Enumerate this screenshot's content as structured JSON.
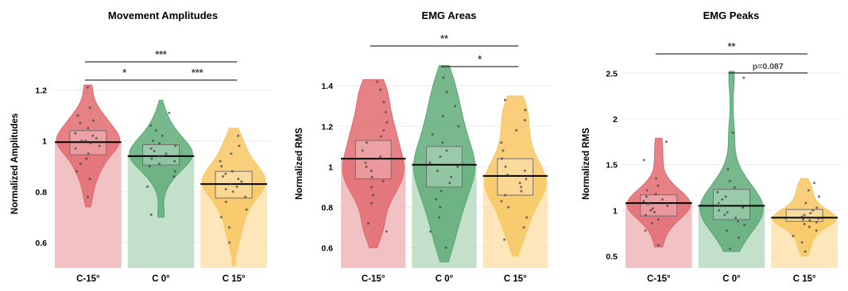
{
  "chart_data": [
    {
      "type": "violin",
      "title": "Movement Amplitudes",
      "xlabel": "",
      "ylabel": "Normalized Amplitudes",
      "ylim": [
        0.5,
        1.32
      ],
      "yticks": [
        0.6,
        0.8,
        1,
        1.2
      ],
      "ytick_labels": [
        "0.6",
        "0.8",
        "1",
        "1.2"
      ],
      "categories": [
        "C-15°",
        "C 0°",
        "C 15°"
      ],
      "means": [
        0.995,
        0.94,
        0.83
      ],
      "box_ranges": [
        [
          0.945,
          1.04
        ],
        [
          0.905,
          0.985
        ],
        [
          0.775,
          0.88
        ]
      ],
      "ranges": [
        [
          0.74,
          1.22
        ],
        [
          0.7,
          1.16
        ],
        [
          0.51,
          1.05
        ]
      ],
      "points": [
        [
          0.78,
          0.85,
          0.88,
          0.91,
          0.93,
          0.95,
          0.97,
          0.98,
          0.99,
          1.0,
          1.0,
          1.01,
          1.02,
          1.03,
          1.05,
          1.07,
          1.08,
          1.1,
          1.13,
          1.21
        ],
        [
          0.71,
          0.82,
          0.86,
          0.88,
          0.9,
          0.91,
          0.92,
          0.93,
          0.94,
          0.94,
          0.95,
          0.96,
          0.97,
          0.98,
          0.99,
          1.0,
          1.02,
          1.04,
          1.06,
          1.11
        ],
        [
          0.6,
          0.66,
          0.7,
          0.73,
          0.76,
          0.78,
          0.8,
          0.81,
          0.82,
          0.83,
          0.84,
          0.85,
          0.86,
          0.87,
          0.88,
          0.9,
          0.92,
          0.95,
          0.98,
          1.02
        ]
      ],
      "significance": [
        {
          "from": 0,
          "to": 1,
          "label": "*"
        },
        {
          "from": 0,
          "to": 2,
          "label": "***"
        },
        {
          "from": 1,
          "to": 2,
          "label": "***"
        }
      ]
    },
    {
      "type": "violin",
      "title": "EMG Areas",
      "xlabel": "",
      "ylabel": "Normalized RMS",
      "ylim": [
        0.5,
        1.53
      ],
      "yticks": [
        0.6,
        0.8,
        1,
        1.2,
        1.4
      ],
      "ytick_labels": [
        "0.6",
        "0.8",
        "1",
        "1.2",
        "1.4"
      ],
      "categories": [
        "C-15°",
        "C 0°",
        "C 15°"
      ],
      "means": [
        1.04,
        1.01,
        0.955
      ],
      "box_ranges": [
        [
          0.94,
          1.13
        ],
        [
          0.9,
          1.1
        ],
        [
          0.86,
          1.04
        ]
      ],
      "ranges": [
        [
          0.6,
          1.43
        ],
        [
          0.53,
          1.5
        ],
        [
          0.56,
          1.35
        ]
      ],
      "points": [
        [
          0.68,
          0.72,
          0.82,
          0.86,
          0.9,
          0.93,
          0.95,
          0.98,
          1.0,
          1.02,
          1.05,
          1.08,
          1.12,
          1.15,
          1.18,
          1.22,
          1.27,
          1.32,
          1.38,
          1.42
        ],
        [
          0.6,
          0.68,
          0.75,
          0.8,
          0.84,
          0.88,
          0.92,
          0.95,
          0.98,
          1.0,
          1.02,
          1.05,
          1.08,
          1.12,
          1.16,
          1.2,
          1.25,
          1.3,
          1.37,
          1.44
        ],
        [
          0.64,
          0.7,
          0.75,
          0.8,
          0.83,
          0.86,
          0.88,
          0.9,
          0.92,
          0.94,
          0.96,
          0.98,
          1.0,
          1.04,
          1.08,
          1.12,
          1.18,
          1.23,
          1.28,
          1.33
        ]
      ],
      "significance": [
        {
          "from": 0,
          "to": 2,
          "label": "**"
        },
        {
          "from": 1,
          "to": 2,
          "label": "*"
        }
      ]
    },
    {
      "type": "violin",
      "title": "EMG Peaks",
      "xlabel": "",
      "ylabel": "Normalized RMS",
      "ylim": [
        0.37,
        2.65
      ],
      "yticks": [
        0.5,
        1,
        1.5,
        2,
        2.5
      ],
      "ytick_labels": [
        "0.5",
        "1",
        "1.5",
        "2",
        "2.5"
      ],
      "categories": [
        "C-15°",
        "C 0°",
        "C 15°"
      ],
      "means": [
        1.08,
        1.05,
        0.92
      ],
      "box_ranges": [
        [
          0.94,
          1.17
        ],
        [
          0.9,
          1.23
        ],
        [
          0.88,
          1.01
        ]
      ],
      "ranges": [
        [
          0.6,
          1.79
        ],
        [
          0.55,
          2.52
        ],
        [
          0.5,
          1.35
        ]
      ],
      "points": [
        [
          0.62,
          0.78,
          0.86,
          0.9,
          0.95,
          0.98,
          1.0,
          1.02,
          1.05,
          1.07,
          1.08,
          1.1,
          1.12,
          1.15,
          1.18,
          1.22,
          1.27,
          1.35,
          1.55,
          1.75
        ],
        [
          0.58,
          0.7,
          0.78,
          0.84,
          0.88,
          0.92,
          0.95,
          0.98,
          1.0,
          1.03,
          1.05,
          1.08,
          1.12,
          1.15,
          1.2,
          1.25,
          1.32,
          1.45,
          1.85,
          2.45
        ],
        [
          0.55,
          0.65,
          0.72,
          0.78,
          0.82,
          0.85,
          0.87,
          0.89,
          0.9,
          0.91,
          0.92,
          0.93,
          0.95,
          0.97,
          1.0,
          1.03,
          1.08,
          1.15,
          1.22,
          1.3
        ]
      ],
      "significance": [
        {
          "from": 0,
          "to": 2,
          "label": "**"
        },
        {
          "from": 1,
          "to": 2,
          "label": "p=0.087"
        }
      ]
    }
  ],
  "colors": {
    "violin": [
      "#e0666b",
      "#5aa874",
      "#f8c55f"
    ],
    "bar": [
      "#f0b6b9",
      "#b8dbc2",
      "#fde2ad"
    ],
    "point": "#444444",
    "mean_line": "#000000",
    "grid": "#ececec",
    "sig_line": "#000000"
  }
}
